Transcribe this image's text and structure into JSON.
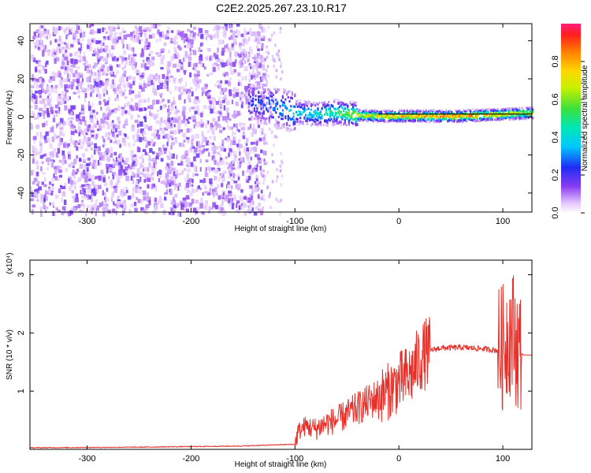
{
  "title": "C2E2.2025.267.23.10.R17",
  "colors": {
    "spectrogram_base": "#7a2cf0",
    "ridge_cyan": "#00e5ff",
    "ridge_green": "#35e04a",
    "ridge_red": "#ff1a1a",
    "snr_line": "#e8302a",
    "frame": "#000000"
  },
  "chart_data": [
    {
      "type": "heatmap",
      "title": "C2E2.2025.267.23.10.R17",
      "xlabel": "Height of straight line (km)",
      "ylabel": "Frequency (Hz)",
      "xlim": [
        -355,
        128
      ],
      "ylim": [
        -50,
        49
      ],
      "x_ticks": [
        -300,
        -200,
        -100,
        0,
        100
      ],
      "y_ticks": [
        -40,
        -20,
        0,
        20,
        40
      ],
      "colorbar": {
        "label": "Normalized spectral amplitude",
        "range": [
          0.0,
          1.0
        ],
        "ticks": [
          "0.0",
          "0.2",
          "0.4",
          "0.6",
          "0.8"
        ],
        "tick_values": [
          0.0,
          0.2,
          0.4,
          0.6,
          0.8
        ],
        "colormap": "rainbow"
      },
      "ridge": {
        "x": [
          -140,
          -120,
          -100,
          -80,
          -60,
          -40,
          -20,
          0,
          20,
          40,
          60,
          80,
          100,
          120
        ],
        "frequency": [
          8,
          6,
          3,
          2,
          3,
          1.5,
          1,
          1,
          1,
          1,
          1,
          1.5,
          2,
          2.5
        ],
        "peak_amplitude": [
          0.25,
          0.35,
          0.4,
          0.45,
          0.55,
          0.7,
          0.8,
          0.85,
          0.9,
          0.9,
          0.9,
          0.85,
          0.8,
          0.75
        ]
      },
      "noise_region": {
        "x_range": [
          -355,
          -140
        ],
        "amplitude": 0.15
      }
    },
    {
      "type": "line",
      "xlabel": "Height of straight line (km)",
      "ylabel": "SNR (10 * v/v)",
      "y_multiplier": "(x10⁴)",
      "xlim": [
        -355,
        128
      ],
      "ylim": [
        0,
        3.25
      ],
      "x_ticks": [
        -300,
        -200,
        -100,
        0,
        100
      ],
      "y_ticks": [
        1,
        2,
        3
      ],
      "series": [
        {
          "x": [
            -355,
            -250,
            -150,
            -100,
            -97,
            -90,
            -80,
            -70,
            -60,
            -50,
            -40,
            -30,
            -20,
            -10,
            0,
            10,
            20,
            30,
            40,
            60,
            80,
            95,
            100,
            105,
            110,
            115,
            120,
            128
          ],
          "y": [
            0.02,
            0.03,
            0.05,
            0.08,
            0.3,
            0.4,
            0.35,
            0.45,
            0.5,
            0.6,
            0.7,
            0.8,
            0.9,
            1.0,
            1.15,
            1.25,
            1.55,
            1.7,
            1.74,
            1.75,
            1.73,
            1.7,
            1.75,
            2.0,
            2.0,
            1.7,
            1.62,
            1.62
          ]
        }
      ]
    }
  ]
}
